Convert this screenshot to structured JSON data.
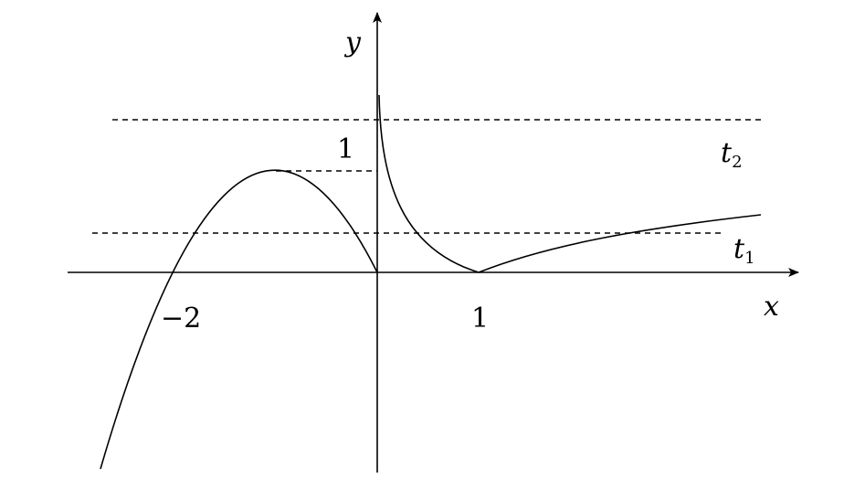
{
  "axes": {
    "x_label": "x",
    "y_label": "y"
  },
  "ticks": {
    "x_neg_two": "−2",
    "x_one": "1",
    "y_one": "1"
  },
  "levels": {
    "t2_main": "t",
    "t2_sub": "2",
    "t1_main": "t",
    "t1_sub": "1"
  },
  "colors": {
    "stroke": "#000000",
    "background": "#ffffff"
  }
}
